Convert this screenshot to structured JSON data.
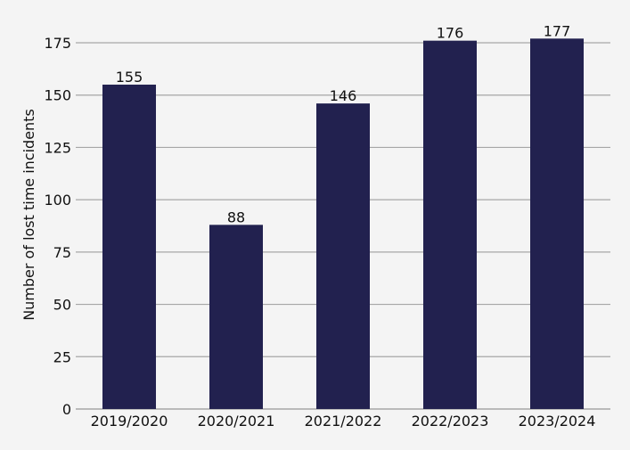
{
  "chart_data": {
    "type": "bar",
    "title": "",
    "xlabel": "",
    "ylabel": "Number of lost time incidents",
    "categories": [
      "2019/2020",
      "2020/2021",
      "2021/2022",
      "2022/2023",
      "2023/2024"
    ],
    "values": [
      155,
      88,
      146,
      176,
      177
    ],
    "ylim": [
      0,
      175
    ],
    "yticks": [
      0,
      25,
      50,
      75,
      100,
      125,
      150,
      175
    ],
    "grid": true,
    "legend": "none",
    "bar_color": "#22214f",
    "grid_color": "#a6a6a6",
    "background_color": "#f4f4f4"
  }
}
